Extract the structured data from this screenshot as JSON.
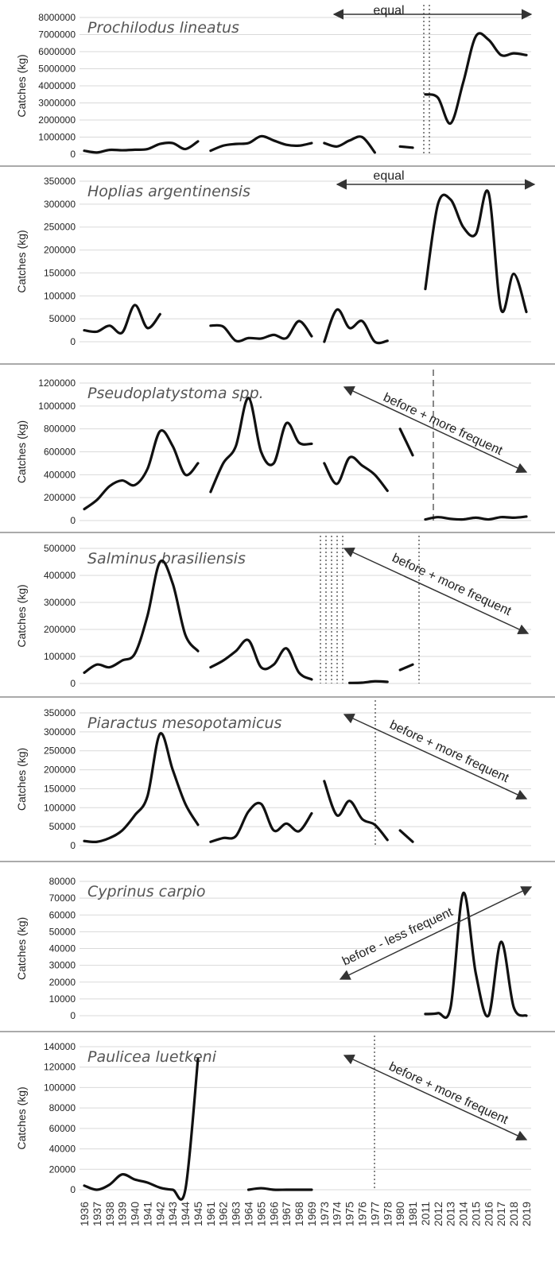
{
  "chart_data": [
    {
      "type": "line",
      "title": "Prochilodus lineatus",
      "ylabel": "Catches (kg)",
      "ylim": [
        0,
        8000000
      ],
      "yticks": [
        "0",
        "1000000",
        "2000000",
        "3000000",
        "4000000",
        "5000000",
        "6000000",
        "7000000",
        "8000000"
      ],
      "annotation": "equal",
      "arrow": "both",
      "series": [
        {
          "x": [
            1936,
            1937,
            1938,
            1939,
            1940,
            1941,
            1942,
            1943,
            1944,
            1945
          ],
          "y": [
            200000,
            100000,
            250000,
            230000,
            260000,
            300000,
            600000,
            650000,
            300000,
            750000
          ]
        },
        {
          "x": [
            1961,
            1962,
            1963,
            1964,
            1965,
            1966,
            1967,
            1968,
            1969
          ],
          "y": [
            200000,
            500000,
            600000,
            650000,
            1050000,
            800000,
            550000,
            500000,
            650000
          ]
        },
        {
          "x": [
            1973,
            1974,
            1975,
            1976,
            1977
          ],
          "y": [
            650000,
            450000,
            800000,
            1000000,
            100000
          ]
        },
        {
          "x": [
            1980,
            1981
          ],
          "y": [
            450000,
            380000
          ]
        },
        {
          "x": [
            2011,
            2012,
            2013,
            2014,
            2015,
            2016,
            2017,
            2018,
            2019
          ],
          "y": [
            3500000,
            3300000,
            1800000,
            4200000,
            6900000,
            6700000,
            5800000,
            5900000,
            5800000
          ]
        }
      ]
    },
    {
      "type": "line",
      "title": "Hoplias argentinensis",
      "ylabel": "Catches (kg)",
      "ylim": [
        0,
        350000
      ],
      "yticks": [
        "0",
        "50000",
        "100000",
        "150000",
        "200000",
        "250000",
        "300000",
        "350000"
      ],
      "annotation": "equal",
      "arrow": "both",
      "series": [
        {
          "x": [
            1936,
            1937,
            1938,
            1939,
            1940,
            1941,
            1942
          ],
          "y": [
            25000,
            22000,
            35000,
            20000,
            80000,
            30000,
            60000
          ]
        },
        {
          "x": [
            1961,
            1962,
            1963,
            1964,
            1965,
            1966,
            1967,
            1968,
            1969
          ],
          "y": [
            35000,
            33000,
            2000,
            8000,
            7000,
            15000,
            8000,
            45000,
            12000
          ]
        },
        {
          "x": [
            1973,
            1974,
            1975,
            1976,
            1977,
            1978
          ],
          "y": [
            0,
            70000,
            30000,
            45000,
            0,
            2000
          ]
        },
        {
          "x": [
            2011,
            2012,
            2013,
            2014,
            2015,
            2016,
            2017,
            2018,
            2019
          ],
          "y": [
            115000,
            300000,
            310000,
            250000,
            235000,
            325000,
            70000,
            148000,
            65000
          ]
        }
      ]
    },
    {
      "type": "line",
      "title": "Pseudoplatystoma spp.",
      "ylabel": "Catches (kg)",
      "ylim": [
        0,
        1200000
      ],
      "yticks": [
        "0",
        "200000",
        "400000",
        "600000",
        "800000",
        "1000000",
        "1200000"
      ],
      "annotation": "before + more frequent",
      "arrow": "down",
      "series": [
        {
          "x": [
            1936,
            1937,
            1938,
            1939,
            1940,
            1941,
            1942,
            1943,
            1944,
            1945
          ],
          "y": [
            100000,
            180000,
            300000,
            350000,
            310000,
            450000,
            780000,
            650000,
            400000,
            500000
          ]
        },
        {
          "x": [
            1961,
            1962,
            1963,
            1964,
            1965,
            1966,
            1967,
            1968,
            1969
          ],
          "y": [
            250000,
            500000,
            650000,
            1070000,
            600000,
            500000,
            850000,
            680000,
            670000
          ]
        },
        {
          "x": [
            1973,
            1974,
            1975,
            1976,
            1977,
            1978
          ],
          "y": [
            500000,
            320000,
            550000,
            480000,
            400000,
            260000
          ]
        },
        {
          "x": [
            1980,
            1981
          ],
          "y": [
            800000,
            570000
          ]
        },
        {
          "x": [
            2011,
            2012,
            2013,
            2014,
            2015,
            2016,
            2017,
            2018,
            2019
          ],
          "y": [
            10000,
            30000,
            15000,
            10000,
            25000,
            10000,
            30000,
            25000,
            35000
          ]
        }
      ]
    },
    {
      "type": "line",
      "title": "Salminus brasiliensis",
      "ylabel": "Catches (kg)",
      "ylim": [
        0,
        500000
      ],
      "yticks": [
        "0",
        "100000",
        "200000",
        "300000",
        "400000",
        "500000"
      ],
      "annotation": "before + more frequent",
      "arrow": "down",
      "series": [
        {
          "x": [
            1936,
            1937,
            1938,
            1939,
            1940,
            1941,
            1942,
            1943,
            1944,
            1945
          ],
          "y": [
            40000,
            70000,
            60000,
            85000,
            110000,
            250000,
            450000,
            370000,
            180000,
            120000
          ]
        },
        {
          "x": [
            1961,
            1962,
            1963,
            1964,
            1965,
            1966,
            1967,
            1968,
            1969
          ],
          "y": [
            60000,
            85000,
            120000,
            160000,
            60000,
            70000,
            130000,
            40000,
            15000
          ]
        },
        {
          "x": [
            1975,
            1976,
            1977,
            1978
          ],
          "y": [
            2000,
            3000,
            8000,
            6000
          ]
        },
        {
          "x": [
            1980,
            1981
          ],
          "y": [
            50000,
            70000
          ]
        }
      ]
    },
    {
      "type": "line",
      "title": "Piaractus mesopotamicus",
      "ylabel": "Catches (kg)",
      "ylim": [
        0,
        350000
      ],
      "yticks": [
        "0",
        "50000",
        "100000",
        "150000",
        "200000",
        "250000",
        "300000",
        "350000"
      ],
      "annotation": "before + more frequent",
      "arrow": "down",
      "series": [
        {
          "x": [
            1936,
            1937,
            1938,
            1939,
            1940,
            1941,
            1942,
            1943,
            1944,
            1945
          ],
          "y": [
            12000,
            10000,
            20000,
            40000,
            80000,
            130000,
            295000,
            200000,
            110000,
            55000
          ]
        },
        {
          "x": [
            1961,
            1962,
            1963,
            1964,
            1965,
            1966,
            1967,
            1968,
            1969
          ],
          "y": [
            10000,
            20000,
            25000,
            90000,
            110000,
            40000,
            58000,
            38000,
            85000
          ]
        },
        {
          "x": [
            1973,
            1974,
            1975,
            1976,
            1977,
            1978
          ],
          "y": [
            170000,
            80000,
            118000,
            70000,
            55000,
            15000
          ]
        },
        {
          "x": [
            1980,
            1981
          ],
          "y": [
            40000,
            10000
          ]
        }
      ]
    },
    {
      "type": "line",
      "title": "Cyprinus carpio",
      "ylabel": "Catches (kg)",
      "ylim": [
        0,
        80000
      ],
      "yticks": [
        "0",
        "10000",
        "20000",
        "30000",
        "40000",
        "50000",
        "60000",
        "70000",
        "80000"
      ],
      "annotation": "before - less frequent",
      "arrow": "up",
      "series": [
        {
          "x": [
            2011,
            2012,
            2013,
            2014,
            2015,
            2016,
            2017,
            2018,
            2019
          ],
          "y": [
            1000,
            1500,
            5000,
            73000,
            25000,
            0,
            44000,
            5000,
            0
          ]
        }
      ]
    },
    {
      "type": "line",
      "title": "Paulicea luetkeni",
      "ylabel": "Catches (kg)",
      "ylim": [
        0,
        140000
      ],
      "yticks": [
        "0",
        "20000",
        "40000",
        "60000",
        "80000",
        "100000",
        "120000",
        "140000"
      ],
      "annotation": "before + more frequent",
      "arrow": "down",
      "series": [
        {
          "x": [
            1936,
            1937,
            1938,
            1939,
            1940,
            1941,
            1942,
            1943,
            1944,
            1945
          ],
          "y": [
            4000,
            0,
            5000,
            15000,
            10000,
            7000,
            2000,
            0,
            0,
            128000
          ]
        },
        {
          "x": [
            1964,
            1965,
            1966,
            1967,
            1968,
            1969
          ],
          "y": [
            0,
            1500,
            0,
            0,
            0,
            0
          ]
        }
      ]
    }
  ],
  "x_axis": {
    "years": [
      1936,
      1937,
      1938,
      1939,
      1940,
      1941,
      1942,
      1943,
      1944,
      1945,
      1961,
      1962,
      1963,
      1964,
      1965,
      1966,
      1967,
      1968,
      1969,
      1973,
      1974,
      1975,
      1976,
      1977,
      1978,
      1980,
      1981,
      2011,
      2012,
      2013,
      2014,
      2015,
      2016,
      2017,
      2018,
      2019
    ],
    "labels": [
      "1936",
      "1937",
      "1938",
      "1939",
      "1940",
      "1941",
      "1942",
      "1943",
      "1944",
      "1945",
      "1961",
      "1962",
      "1963",
      "1964",
      "1965",
      "1966",
      "1967",
      "1968",
      "1969",
      "1973",
      "1974",
      "1975",
      "1976",
      "1977",
      "1978",
      "1980",
      "1981",
      "2011",
      "2012",
      "2013",
      "2014",
      "2015",
      "2016",
      "2017",
      "2018",
      "2019"
    ]
  }
}
